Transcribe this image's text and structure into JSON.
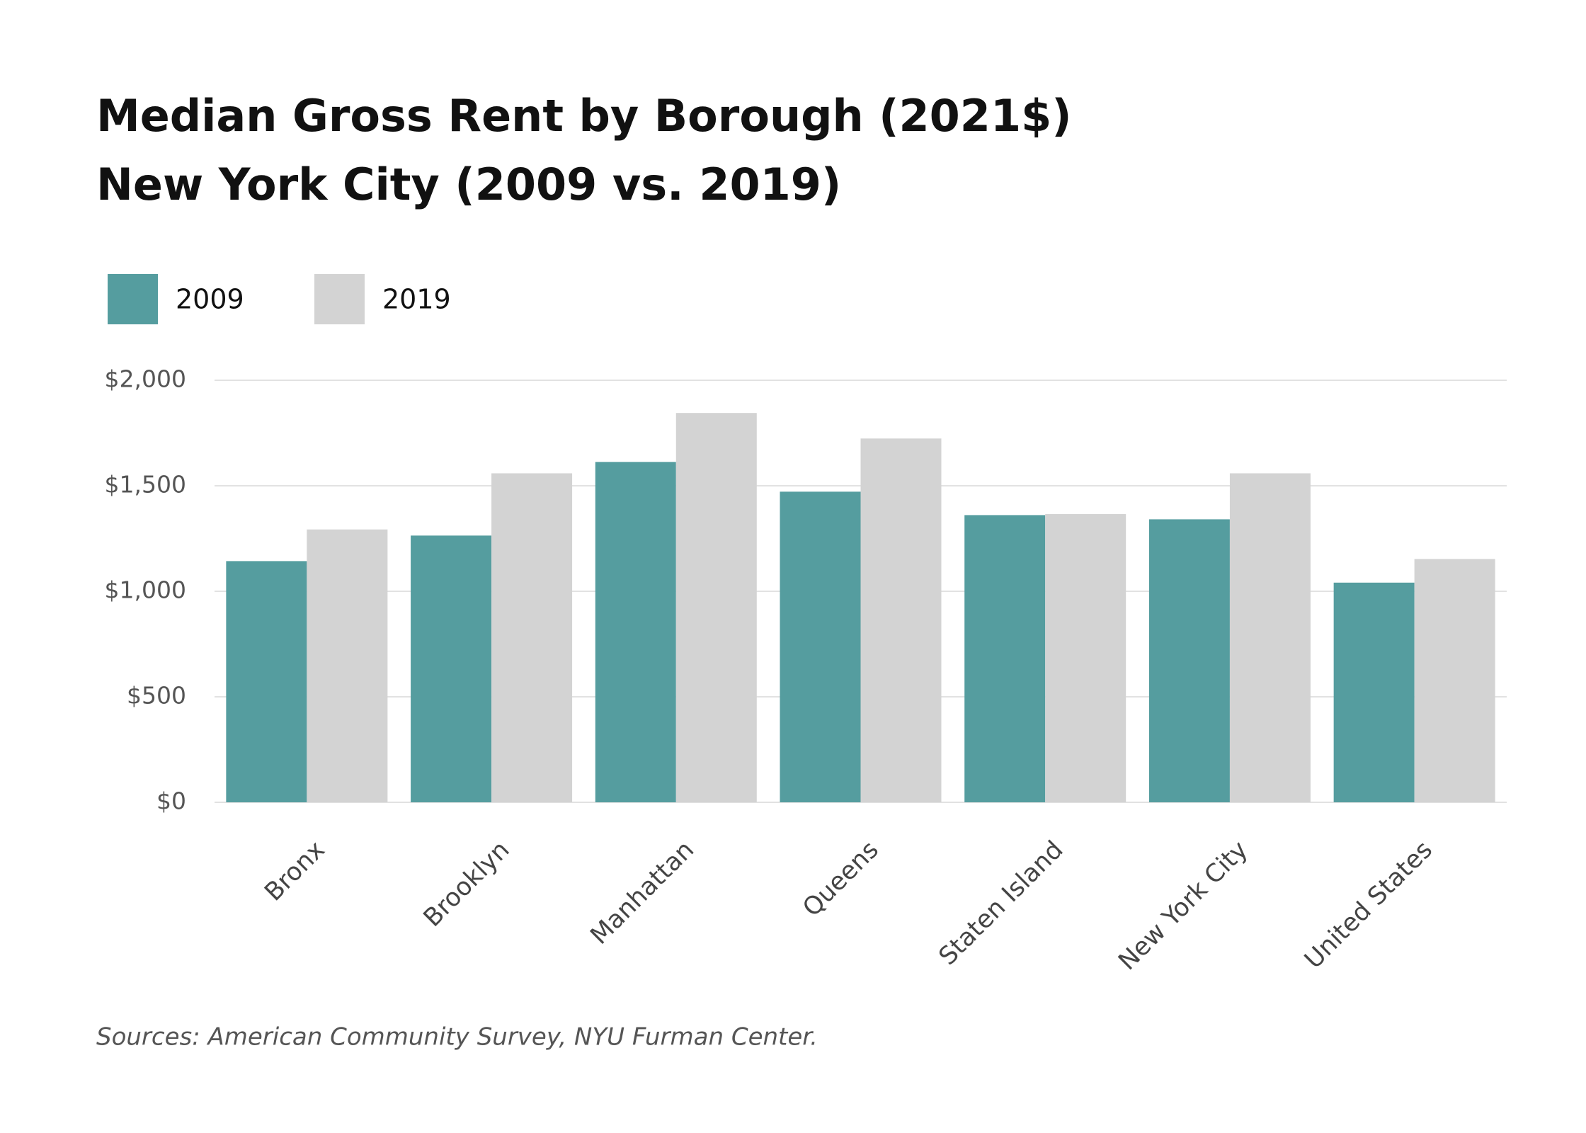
{
  "chart_data": {
    "type": "bar",
    "title": "Median Gross Rent by Borough (2021$)",
    "subtitle": "New York City (2009 vs. 2019)",
    "categories": [
      "Bronx",
      "Brooklyn",
      "Manhattan",
      "Queens",
      "Staten Island",
      "New York City",
      "United States"
    ],
    "series": [
      {
        "name": "2009",
        "color": "#559d9f",
        "values": [
          1143,
          1264,
          1613,
          1472,
          1361,
          1341,
          1041
        ]
      },
      {
        "name": "2019",
        "color": "#d3d3d3",
        "values": [
          1293,
          1559,
          1845,
          1724,
          1366,
          1559,
          1153
        ]
      }
    ],
    "ylim": [
      0,
      2000
    ],
    "yticks": [
      {
        "value": 0,
        "label": "$0"
      },
      {
        "value": 500,
        "label": "$500"
      },
      {
        "value": 1000,
        "label": "$1,000"
      },
      {
        "value": 1500,
        "label": "$1,500"
      },
      {
        "value": 2000,
        "label": "$2,000"
      }
    ],
    "grid": true,
    "legend": "top-left",
    "source": "Sources: American Community Survey, NYU Furman Center."
  }
}
